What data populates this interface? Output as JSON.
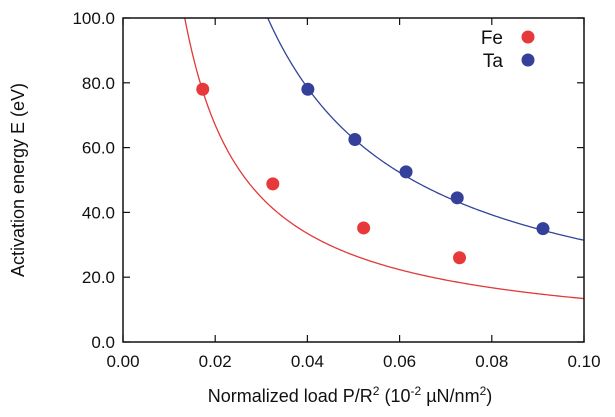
{
  "chart_data": {
    "type": "scatter",
    "xlabel": "Normalized load  P/R",
    "xlabel_sup": "2",
    "xlabel_unit_open": " (10",
    "xlabel_unit_exp": "-2",
    "xlabel_unit_close": " µN/nm",
    "xlabel_unit_sup2": "2",
    "xlabel_unit_end": ")",
    "ylabel": "Activation energy  E (eV)",
    "xlim": [
      0.0,
      0.1
    ],
    "ylim": [
      0.0,
      100.0
    ],
    "x_ticks": [
      0.0,
      0.02,
      0.04,
      0.06,
      0.08,
      0.1
    ],
    "x_tick_labels": [
      "0.00",
      "0.02",
      "0.04",
      "0.06",
      "0.08",
      "0.10"
    ],
    "y_ticks": [
      0,
      20,
      40,
      60,
      80,
      100
    ],
    "y_tick_labels": [
      "0.0",
      "20.0",
      "40.0",
      "60.0",
      "80.0",
      "100.0"
    ],
    "grid": false,
    "legend_position": "top-right",
    "series": [
      {
        "name": "Fe",
        "color": "#e8393a",
        "line_color": "#e03a3a",
        "points": [
          [
            0.0173,
            78.0
          ],
          [
            0.0325,
            48.8
          ],
          [
            0.0522,
            35.2
          ],
          [
            0.073,
            26.0
          ]
        ],
        "fit_curve": "a/x",
        "fit_a": 1.34
      },
      {
        "name": "Ta",
        "color": "#35409a",
        "line_color": "#33449a",
        "points": [
          [
            0.0401,
            78.0
          ],
          [
            0.0503,
            62.5
          ],
          [
            0.0614,
            52.5
          ],
          [
            0.0725,
            44.5
          ],
          [
            0.0911,
            35.0
          ]
        ],
        "fit_curve": "a/x",
        "fit_a": 3.14
      }
    ]
  }
}
